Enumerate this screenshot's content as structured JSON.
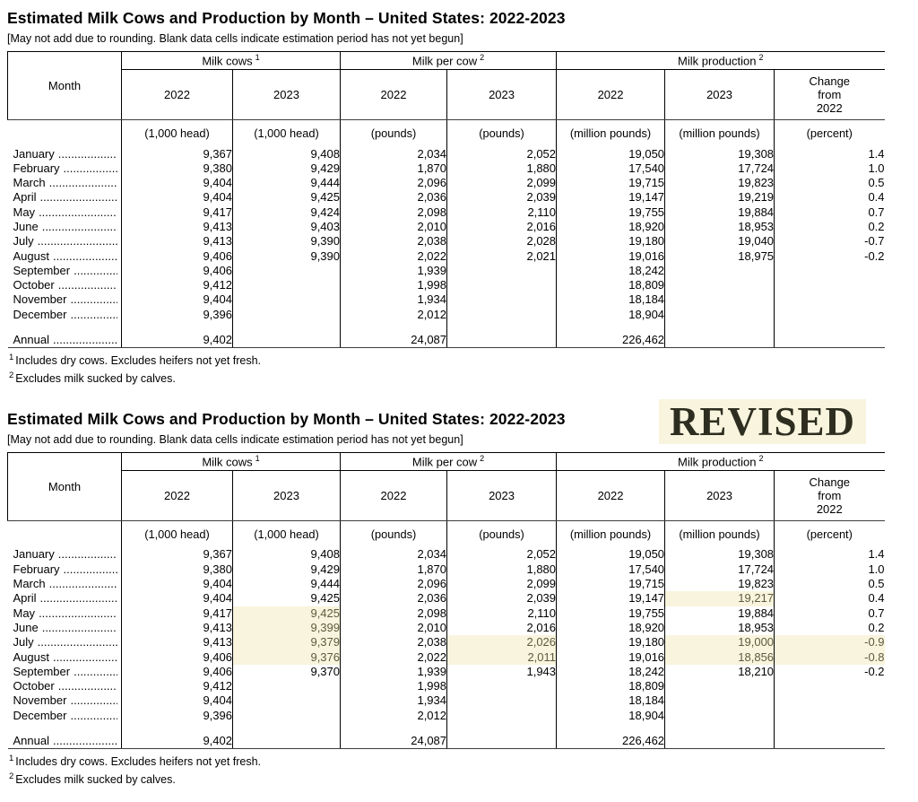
{
  "colors": {
    "highlight_bg": "#f8f4dd",
    "highlight_text": "#5e5b3e",
    "badge_bg": "#f8f4de",
    "badge_text": "#2e2e20"
  },
  "tables": [
    {
      "title": "Estimated Milk Cows and Production by Month – United States: 2022-2023",
      "note": "[May not add due to rounding. Blank data cells indicate estimation period has not yet begun]",
      "header": {
        "month": "Month",
        "groups": [
          {
            "label": "Milk cows",
            "sup": "1"
          },
          {
            "label": "Milk per cow",
            "sup": "2"
          },
          {
            "label": "Milk production",
            "sup": "2"
          }
        ],
        "years": [
          "2022",
          "2023",
          "2022",
          "2023",
          "2022",
          "2023"
        ],
        "change": "Change from 2022",
        "units": [
          "(1,000 head)",
          "(1,000 head)",
          "(pounds)",
          "(pounds)",
          "(million pounds)",
          "(million pounds)",
          "(percent)"
        ]
      },
      "rows": [
        {
          "month": "January",
          "cells": [
            "9,367",
            "9,408",
            "2,034",
            "2,052",
            "19,050",
            "19,308",
            "1.4"
          ]
        },
        {
          "month": "February",
          "cells": [
            "9,380",
            "9,429",
            "1,870",
            "1,880",
            "17,540",
            "17,724",
            "1.0"
          ]
        },
        {
          "month": "March",
          "cells": [
            "9,404",
            "9,444",
            "2,096",
            "2,099",
            "19,715",
            "19,823",
            "0.5"
          ]
        },
        {
          "month": "April",
          "cells": [
            "9,404",
            "9,425",
            "2,036",
            "2,039",
            "19,147",
            "19,219",
            "0.4"
          ]
        },
        {
          "month": "May",
          "cells": [
            "9,417",
            "9,424",
            "2,098",
            "2,110",
            "19,755",
            "19,884",
            "0.7"
          ]
        },
        {
          "month": "June",
          "cells": [
            "9,413",
            "9,403",
            "2,010",
            "2,016",
            "18,920",
            "18,953",
            "0.2"
          ]
        },
        {
          "month": "July",
          "cells": [
            "9,413",
            "9,390",
            "2,038",
            "2,028",
            "19,180",
            "19,040",
            "-0.7"
          ]
        },
        {
          "month": "August",
          "cells": [
            "9,406",
            "9,390",
            "2,022",
            "2,021",
            "19,016",
            "18,975",
            "-0.2"
          ]
        },
        {
          "month": "September",
          "cells": [
            "9,406",
            "",
            "1,939",
            "",
            "18,242",
            "",
            ""
          ]
        },
        {
          "month": "October",
          "cells": [
            "9,412",
            "",
            "1,998",
            "",
            "18,809",
            "",
            ""
          ]
        },
        {
          "month": "November",
          "cells": [
            "9,404",
            "",
            "1,934",
            "",
            "18,184",
            "",
            ""
          ]
        },
        {
          "month": "December",
          "cells": [
            "9,396",
            "",
            "2,012",
            "",
            "18,904",
            "",
            ""
          ]
        },
        {
          "spacer": true,
          "month": "",
          "cells": [
            "",
            "",
            "",
            "",
            "",
            "",
            ""
          ]
        },
        {
          "month": "Annual",
          "last": true,
          "cells": [
            "9,402",
            "",
            "24,087",
            "",
            "226,462",
            "",
            ""
          ]
        }
      ],
      "footnotes": [
        {
          "sup": "1",
          "text": "Includes dry cows. Excludes heifers not yet fresh."
        },
        {
          "sup": "2",
          "text": "Excludes milk sucked by calves."
        }
      ]
    },
    {
      "title": "Estimated Milk Cows and Production by Month – United States: 2022-2023",
      "badge": "REVISED",
      "note": "[May not add due to rounding. Blank data cells indicate estimation period has not yet begun]",
      "header": {
        "month": "Month",
        "groups": [
          {
            "label": "Milk cows",
            "sup": "1"
          },
          {
            "label": "Milk per cow",
            "sup": "2"
          },
          {
            "label": "Milk production",
            "sup": "2"
          }
        ],
        "years": [
          "2022",
          "2023",
          "2022",
          "2023",
          "2022",
          "2023"
        ],
        "change": "Change from 2022",
        "units": [
          "(1,000 head)",
          "(1,000 head)",
          "(pounds)",
          "(pounds)",
          "(million pounds)",
          "(million pounds)",
          "(percent)"
        ]
      },
      "rows": [
        {
          "month": "January",
          "cells": [
            "9,367",
            "9,408",
            "2,034",
            "2,052",
            "19,050",
            "19,308",
            "1.4"
          ]
        },
        {
          "month": "February",
          "cells": [
            "9,380",
            "9,429",
            "1,870",
            "1,880",
            "17,540",
            "17,724",
            "1.0"
          ]
        },
        {
          "month": "March",
          "cells": [
            "9,404",
            "9,444",
            "2,096",
            "2,099",
            "19,715",
            "19,823",
            "0.5"
          ]
        },
        {
          "month": "April",
          "cells": [
            "9,404",
            "9,425",
            "2,036",
            "2,039",
            "19,147",
            "19,217",
            "0.4"
          ],
          "hl": [
            5
          ]
        },
        {
          "month": "May",
          "cells": [
            "9,417",
            "9,425",
            "2,098",
            "2,110",
            "19,755",
            "19,884",
            "0.7"
          ],
          "hl": [
            1
          ]
        },
        {
          "month": "June",
          "cells": [
            "9,413",
            "9,399",
            "2,010",
            "2,016",
            "18,920",
            "18,953",
            "0.2"
          ],
          "hl": [
            1
          ]
        },
        {
          "month": "July",
          "cells": [
            "9,413",
            "9,379",
            "2,038",
            "2,026",
            "19,180",
            "19,000",
            "-0.9"
          ],
          "hl": [
            1,
            3,
            5,
            6
          ]
        },
        {
          "month": "August",
          "cells": [
            "9,406",
            "9,376",
            "2,022",
            "2,011",
            "19,016",
            "18,856",
            "-0.8"
          ],
          "hl": [
            1,
            3,
            5,
            6
          ]
        },
        {
          "month": "September",
          "cells": [
            "9,406",
            "9,370",
            "1,939",
            "1,943",
            "18,242",
            "18,210",
            "-0.2"
          ]
        },
        {
          "month": "October",
          "cells": [
            "9,412",
            "",
            "1,998",
            "",
            "18,809",
            "",
            ""
          ]
        },
        {
          "month": "November",
          "cells": [
            "9,404",
            "",
            "1,934",
            "",
            "18,184",
            "",
            ""
          ]
        },
        {
          "month": "December",
          "cells": [
            "9,396",
            "",
            "2,012",
            "",
            "18,904",
            "",
            ""
          ]
        },
        {
          "spacer": true,
          "month": "",
          "cells": [
            "",
            "",
            "",
            "",
            "",
            "",
            ""
          ]
        },
        {
          "month": "Annual",
          "last": true,
          "cells": [
            "9,402",
            "",
            "24,087",
            "",
            "226,462",
            "",
            ""
          ]
        }
      ],
      "footnotes": [
        {
          "sup": "1",
          "text": "Includes dry cows. Excludes heifers not yet fresh."
        },
        {
          "sup": "2",
          "text": "Excludes milk sucked by calves."
        }
      ]
    }
  ]
}
